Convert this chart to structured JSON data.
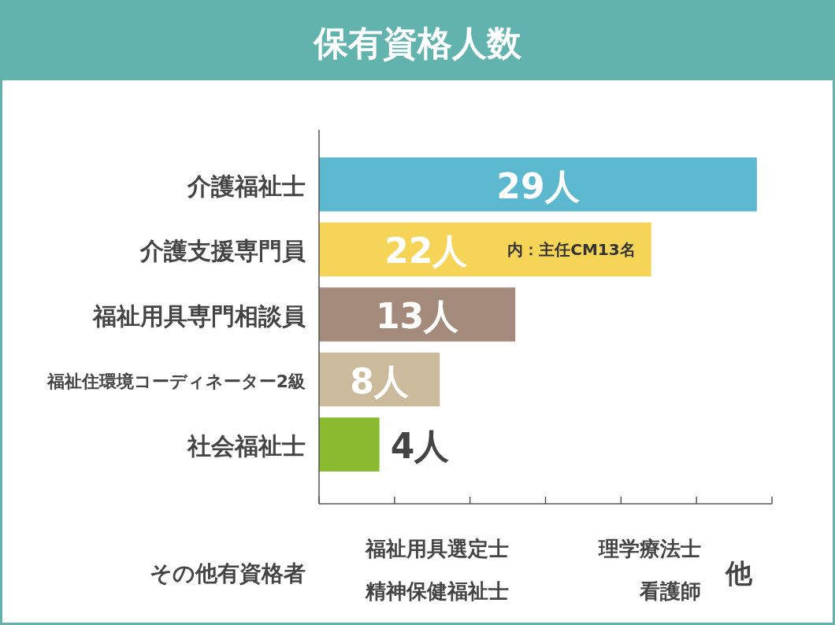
{
  "chart_data": {
    "type": "bar",
    "orientation": "horizontal",
    "title": "保有資格人数",
    "categories": [
      "介護福祉士",
      "介護支援専門員",
      "福祉用具専門相談員",
      "福祉住環境コーディネーター2級",
      "社会福祉士"
    ],
    "values": [
      29,
      22,
      13,
      8,
      4
    ],
    "colors": [
      "#5cb8cf",
      "#f5d457",
      "#a38a7a",
      "#cbbb9c",
      "#8aba2f"
    ],
    "value_labels": [
      "29人",
      "22人",
      "13人",
      "8人",
      "4人"
    ],
    "xlim": [
      0,
      30
    ],
    "xticks": [
      {
        "value": 0,
        "label": null
      },
      {
        "value": 5,
        "label": null
      },
      {
        "value": 10,
        "label": null
      },
      {
        "value": 15,
        "label": null
      },
      {
        "value": 20,
        "label": null
      },
      {
        "value": 25,
        "label": null
      },
      {
        "value": 30,
        "label": null
      }
    ],
    "tick_labels": "y",
    "annotations": [
      {
        "text": "内：主任CM13名",
        "x": 22,
        "y": "介護支援専門員"
      },
      "その他有資格者",
      "福祉用具選定士",
      "精神保健福祉士",
      "理学療法士",
      "看護師",
      "他"
    ]
  }
}
